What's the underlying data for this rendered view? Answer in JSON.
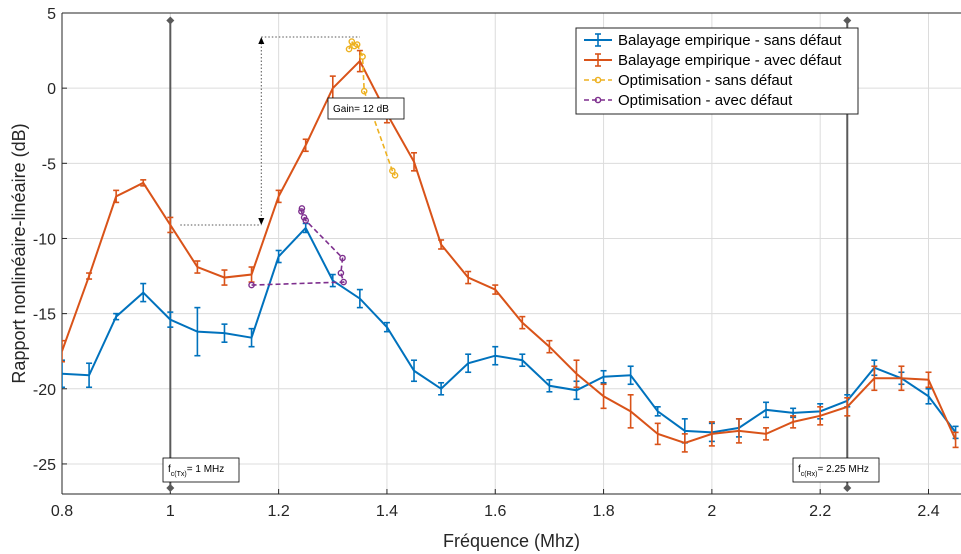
{
  "chart_data": {
    "type": "line",
    "title": "",
    "xlabel": "Fréquence (Mhz)",
    "ylabel": "Rapport nonlinéaire-linéaire (dB)",
    "xlim": [
      0.8,
      2.46
    ],
    "ylim": [
      -27,
      5
    ],
    "xticks": [
      0.8,
      1,
      1.2,
      1.4,
      1.6,
      1.8,
      2,
      2.2,
      2.4
    ],
    "xtick_labels": [
      "0.8",
      "1",
      "1.2",
      "1.4",
      "1.6",
      "1.8",
      "2",
      "2.2",
      "2.4"
    ],
    "yticks": [
      5,
      0,
      -5,
      -10,
      -15,
      -20,
      -25
    ],
    "ytick_labels": [
      "5",
      "0",
      "-5",
      "-10",
      "-15",
      "-20",
      "-25"
    ],
    "grid": true,
    "legend_position": "top-right",
    "colors": {
      "blue": "#0072BD",
      "orange": "#D95319",
      "yellow": "#EDB120",
      "purple": "#7E2F8E",
      "vline": "#5a5a5a"
    },
    "series": [
      {
        "name": "Balayage empirique - sans défaut",
        "style": "errorbar",
        "color": "#0072BD",
        "x": [
          0.8,
          0.85,
          0.9,
          0.95,
          1.0,
          1.05,
          1.1,
          1.15,
          1.2,
          1.25,
          1.3,
          1.35,
          1.4,
          1.45,
          1.5,
          1.55,
          1.6,
          1.65,
          1.7,
          1.75,
          1.8,
          1.85,
          1.9,
          1.95,
          2.0,
          2.05,
          2.1,
          2.15,
          2.2,
          2.25,
          2.3,
          2.35,
          2.4,
          2.45
        ],
        "y": [
          -19.0,
          -19.1,
          -15.2,
          -13.6,
          -15.4,
          -16.2,
          -16.3,
          -16.6,
          -11.2,
          -9.3,
          -12.8,
          -14.0,
          -15.9,
          -18.8,
          -20.0,
          -18.3,
          -17.8,
          -18.1,
          -19.8,
          -20.1,
          -19.2,
          -19.1,
          -21.5,
          -22.8,
          -22.9,
          -22.6,
          -21.4,
          -21.6,
          -21.5,
          -20.8,
          -18.6,
          -19.3,
          -20.5,
          -22.9
        ],
        "err": [
          0.9,
          0.8,
          0.2,
          0.6,
          0.5,
          1.6,
          0.6,
          0.6,
          0.4,
          0.3,
          0.4,
          0.6,
          0.3,
          0.7,
          0.4,
          0.6,
          0.6,
          0.4,
          0.4,
          0.6,
          0.4,
          0.6,
          0.3,
          0.8,
          0.6,
          0.6,
          0.5,
          0.3,
          0.5,
          0.4,
          0.5,
          0.4,
          0.5,
          0.4
        ]
      },
      {
        "name": "Balayage empirique - avec défaut",
        "style": "errorbar",
        "color": "#D95319",
        "x": [
          0.8,
          0.85,
          0.9,
          0.95,
          1.0,
          1.05,
          1.1,
          1.15,
          1.2,
          1.25,
          1.3,
          1.35,
          1.4,
          1.45,
          1.5,
          1.55,
          1.6,
          1.65,
          1.7,
          1.75,
          1.8,
          1.85,
          1.9,
          1.95,
          2.0,
          2.05,
          2.1,
          2.15,
          2.2,
          2.25,
          2.3,
          2.35,
          2.4,
          2.45
        ],
        "y": [
          -17.5,
          -12.5,
          -7.2,
          -6.3,
          -9.1,
          -11.9,
          -12.6,
          -12.4,
          -7.2,
          -3.8,
          0.0,
          1.8,
          -1.7,
          -4.9,
          -10.4,
          -12.6,
          -13.4,
          -15.6,
          -17.2,
          -19.0,
          -20.5,
          -21.5,
          -23.0,
          -23.6,
          -23.0,
          -22.8,
          -23.0,
          -22.2,
          -21.8,
          -21.2,
          -19.3,
          -19.3,
          -19.4,
          -23.4
        ],
        "err": [
          0.7,
          0.2,
          0.4,
          0.2,
          0.5,
          0.4,
          0.5,
          0.5,
          0.4,
          0.4,
          0.8,
          0.7,
          0.6,
          0.6,
          0.3,
          0.4,
          0.3,
          0.4,
          0.4,
          0.9,
          0.8,
          1.1,
          0.7,
          0.6,
          0.8,
          0.8,
          0.4,
          0.4,
          0.6,
          0.6,
          0.8,
          0.8,
          0.5,
          0.5
        ]
      },
      {
        "name": "Optimisation - sans défaut",
        "style": "dashed-markers",
        "color": "#EDB120",
        "x": [
          1.33,
          1.335,
          1.34,
          1.345,
          1.355,
          1.358,
          1.41,
          1.415
        ],
        "y": [
          2.6,
          3.1,
          2.8,
          2.9,
          2.1,
          -0.2,
          -5.5,
          -5.8
        ]
      },
      {
        "name": "Optimisation - avec défaut",
        "style": "dashed-markers",
        "color": "#7E2F8E",
        "x": [
          1.15,
          1.32,
          1.315,
          1.318,
          1.25,
          1.247,
          1.242,
          1.243
        ],
        "y": [
          -13.1,
          -12.9,
          -12.3,
          -11.3,
          -8.8,
          -8.6,
          -8.2,
          -8.0
        ]
      }
    ],
    "vlines": [
      {
        "x": 1.0,
        "label_main": "f",
        "label_sub": "c(Tx)",
        "label_rest": "= 1 MHz"
      },
      {
        "x": 2.25,
        "label_main": "f",
        "label_sub": "c(Rx)",
        "label_rest": "= 2.25 MHz"
      }
    ],
    "gain_annotation": {
      "text": "Gain= 12 dB",
      "from": {
        "x": 1.0,
        "y": -9.1
      },
      "to": {
        "x": 1.35,
        "y": 3.4
      }
    }
  }
}
